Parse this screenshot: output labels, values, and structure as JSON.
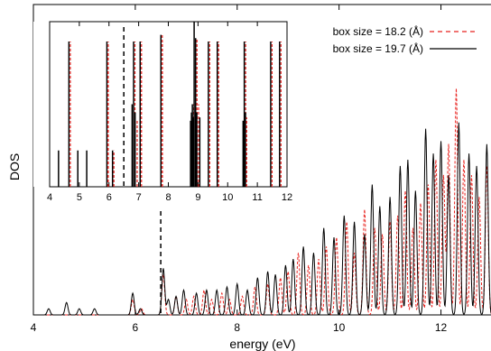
{
  "chart_data": {
    "type": "line",
    "xlabel": "energy (eV)",
    "ylabel": "DOS",
    "xlim": [
      4,
      13
    ],
    "x_ticks": [
      "4",
      "6",
      "8",
      "10",
      "12"
    ],
    "fermi_marker_x": 6.5,
    "legend": {
      "placement": "top-right",
      "entries": [
        {
          "label": "box size = 18.2 (Å)",
          "color": "#e8211d",
          "style": "dashed"
        },
        {
          "label": "box size = 19.7 (Å)",
          "color": "#000000",
          "style": "solid"
        }
      ]
    },
    "series": [
      {
        "name": "box size = 18.2 (Å)",
        "color": "#e8211d",
        "dashed": true,
        "peaks": [
          [
            5.95,
            0.05
          ],
          [
            6.12,
            0.02
          ],
          [
            6.55,
            0.13
          ],
          [
            6.8,
            0.06
          ],
          [
            7.0,
            0.05
          ],
          [
            7.15,
            0.06
          ],
          [
            7.35,
            0.08
          ],
          [
            7.5,
            0.05
          ],
          [
            7.7,
            0.07
          ],
          [
            7.85,
            0.05
          ],
          [
            8.1,
            0.06
          ],
          [
            8.35,
            0.09
          ],
          [
            8.6,
            0.1
          ],
          [
            8.85,
            0.12
          ],
          [
            9.0,
            0.14
          ],
          [
            9.2,
            0.2
          ],
          [
            9.4,
            0.16
          ],
          [
            9.6,
            0.18
          ],
          [
            9.75,
            0.22
          ],
          [
            9.95,
            0.25
          ],
          [
            10.15,
            0.3
          ],
          [
            10.3,
            0.2
          ],
          [
            10.5,
            0.34
          ],
          [
            10.7,
            0.28
          ],
          [
            10.85,
            0.26
          ],
          [
            11.0,
            0.3
          ],
          [
            11.15,
            0.32
          ],
          [
            11.3,
            0.4
          ],
          [
            11.45,
            0.28
          ],
          [
            11.6,
            0.36
          ],
          [
            11.75,
            0.42
          ],
          [
            11.9,
            0.5
          ],
          [
            12.05,
            0.45
          ],
          [
            12.15,
            0.55
          ],
          [
            12.3,
            0.73
          ],
          [
            12.45,
            0.5
          ],
          [
            12.6,
            0.45
          ],
          [
            12.75,
            0.38
          ],
          [
            12.9,
            0.48
          ]
        ]
      },
      {
        "name": "box size = 19.7 (Å)",
        "color": "#000000",
        "dashed": false,
        "peaks": [
          [
            4.3,
            0.02
          ],
          [
            4.65,
            0.04
          ],
          [
            4.9,
            0.02
          ],
          [
            5.2,
            0.02
          ],
          [
            5.95,
            0.07
          ],
          [
            6.1,
            0.02
          ],
          [
            6.55,
            0.15
          ],
          [
            6.65,
            0.05
          ],
          [
            6.8,
            0.06
          ],
          [
            6.95,
            0.08
          ],
          [
            7.2,
            0.07
          ],
          [
            7.4,
            0.08
          ],
          [
            7.6,
            0.08
          ],
          [
            7.8,
            0.09
          ],
          [
            8.0,
            0.1
          ],
          [
            8.2,
            0.08
          ],
          [
            8.4,
            0.12
          ],
          [
            8.6,
            0.14
          ],
          [
            8.75,
            0.13
          ],
          [
            8.95,
            0.16
          ],
          [
            9.1,
            0.18
          ],
          [
            9.3,
            0.22
          ],
          [
            9.5,
            0.2
          ],
          [
            9.7,
            0.28
          ],
          [
            9.9,
            0.25
          ],
          [
            10.1,
            0.32
          ],
          [
            10.3,
            0.3
          ],
          [
            10.5,
            0.26
          ],
          [
            10.65,
            0.42
          ],
          [
            10.8,
            0.35
          ],
          [
            11.0,
            0.38
          ],
          [
            11.2,
            0.48
          ],
          [
            11.35,
            0.5
          ],
          [
            11.5,
            0.4
          ],
          [
            11.7,
            0.6
          ],
          [
            11.85,
            0.52
          ],
          [
            12.0,
            0.56
          ],
          [
            12.15,
            0.45
          ],
          [
            12.35,
            0.62
          ],
          [
            12.55,
            0.52
          ],
          [
            12.7,
            0.48
          ],
          [
            12.9,
            0.55
          ]
        ]
      }
    ],
    "inset": {
      "xlim": [
        4,
        12
      ],
      "x_ticks": [
        "4",
        "5",
        "6",
        "7",
        "8",
        "9",
        "10",
        "11",
        "12"
      ],
      "fermi_marker_x": 6.5,
      "lines": [
        {
          "x": 4.3,
          "h": 0.22,
          "s": "black"
        },
        {
          "x": 4.65,
          "h": 0.88,
          "s": "both"
        },
        {
          "x": 4.95,
          "h": 0.22,
          "s": "black"
        },
        {
          "x": 5.25,
          "h": 0.22,
          "s": "black"
        },
        {
          "x": 5.93,
          "h": 0.88,
          "s": "both"
        },
        {
          "x": 5.97,
          "h": 0.82,
          "s": "red"
        },
        {
          "x": 6.12,
          "h": 0.22,
          "s": "both"
        },
        {
          "x": 6.78,
          "h": 0.5,
          "s": "black"
        },
        {
          "x": 6.83,
          "h": 0.88,
          "s": "both"
        },
        {
          "x": 6.88,
          "h": 0.45,
          "s": "black"
        },
        {
          "x": 6.95,
          "h": 0.4,
          "s": "red"
        },
        {
          "x": 7.05,
          "h": 0.88,
          "s": "both"
        },
        {
          "x": 7.75,
          "h": 0.92,
          "s": "both"
        },
        {
          "x": 7.8,
          "h": 0.88,
          "s": "red"
        },
        {
          "x": 8.75,
          "h": 0.4,
          "s": "black"
        },
        {
          "x": 8.78,
          "h": 0.45,
          "s": "black"
        },
        {
          "x": 8.81,
          "h": 0.5,
          "s": "both"
        },
        {
          "x": 8.84,
          "h": 0.42,
          "s": "black"
        },
        {
          "x": 8.87,
          "h": 1.0,
          "s": "black"
        },
        {
          "x": 8.92,
          "h": 0.9,
          "s": "both"
        },
        {
          "x": 8.96,
          "h": 0.45,
          "s": "black"
        },
        {
          "x": 9.02,
          "h": 0.5,
          "s": "red"
        },
        {
          "x": 9.06,
          "h": 0.42,
          "s": "black"
        },
        {
          "x": 9.35,
          "h": 0.88,
          "s": "both"
        },
        {
          "x": 9.65,
          "h": 0.88,
          "s": "both"
        },
        {
          "x": 10.52,
          "h": 0.4,
          "s": "black"
        },
        {
          "x": 10.56,
          "h": 0.88,
          "s": "both"
        },
        {
          "x": 10.6,
          "h": 0.45,
          "s": "black"
        },
        {
          "x": 10.64,
          "h": 0.42,
          "s": "red"
        },
        {
          "x": 11.45,
          "h": 0.88,
          "s": "both"
        },
        {
          "x": 11.75,
          "h": 0.88,
          "s": "both"
        }
      ]
    }
  }
}
